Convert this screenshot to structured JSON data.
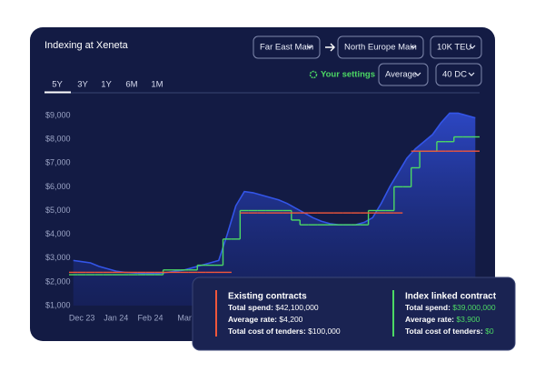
{
  "header": {
    "title": "Indexing at Xeneta",
    "origin": "Far East Main",
    "destination": "North Europe Main",
    "volume": "10K TEU",
    "settings": "Your settings",
    "metric": "Average",
    "equipment": "40 DC",
    "tabs": [
      "5Y",
      "3Y",
      "1Y",
      "6M",
      "1M"
    ]
  },
  "chart_data": {
    "type": "line",
    "categories": [
      null,
      "Dec 23",
      null,
      null,
      null,
      "Jan 24",
      null,
      null,
      null,
      "Feb 24",
      null,
      null,
      null,
      "Mar",
      null,
      null,
      null,
      null,
      null,
      null,
      null,
      null,
      null,
      null,
      null,
      null,
      null,
      null,
      null,
      null,
      null,
      null,
      null,
      null,
      null,
      null,
      null,
      null,
      null,
      null,
      null,
      null,
      null,
      null,
      null,
      null,
      null,
      null
    ],
    "series": [
      {
        "color": "#3355e8",
        "area": true,
        "step": false,
        "values": [
          2900,
          2850,
          2800,
          2650,
          2550,
          2450,
          2400,
          2380,
          2350,
          2350,
          2350,
          2400,
          2450,
          2500,
          2600,
          2700,
          2800,
          2900,
          4000,
          5200,
          5800,
          5750,
          5650,
          5550,
          5450,
          5300,
          5100,
          4900,
          4700,
          4550,
          4450,
          4400,
          4400,
          4400,
          4500,
          4700,
          5300,
          6000,
          6600,
          7200,
          7600,
          7900,
          8200,
          8700,
          9100,
          9100,
          9000,
          8900
        ]
      },
      {
        "color": "#4cd964",
        "area": false,
        "step": true,
        "values": [
          2300,
          2300,
          2300,
          2300,
          2300,
          2300,
          2300,
          2300,
          2300,
          2300,
          2300,
          2500,
          2500,
          2500,
          2500,
          2700,
          2700,
          2700,
          3800,
          3800,
          5000,
          5000,
          5000,
          5000,
          5000,
          5000,
          4600,
          4400,
          4400,
          4400,
          4400,
          4400,
          4400,
          4400,
          4400,
          5000,
          5000,
          5000,
          6000,
          6000,
          6800,
          7500,
          7500,
          7900,
          7900,
          8100,
          8100,
          8100
        ]
      },
      {
        "color": "#f0563b",
        "area": false,
        "step": true,
        "values": [
          2400,
          2400,
          2400,
          2400,
          2400,
          2400,
          2400,
          2400,
          2400,
          2400,
          2400,
          2400,
          2400,
          2400,
          2400,
          2400,
          2400,
          2400,
          2400,
          null,
          4900,
          4900,
          4900,
          4900,
          4900,
          4900,
          4900,
          4900,
          4900,
          4900,
          4900,
          4900,
          4900,
          4900,
          4900,
          4900,
          4900,
          4900,
          4900,
          null,
          7500,
          7500,
          7500,
          7500,
          7500,
          7500,
          7500,
          7500
        ]
      }
    ],
    "ylim": [
      1000,
      9000
    ],
    "yticks": [
      {
        "value": 1000,
        "label": "$1,000"
      },
      {
        "value": 2000,
        "label": "$2,000"
      },
      {
        "value": 3000,
        "label": "$3,000"
      },
      {
        "value": 4000,
        "label": "$4,000"
      },
      {
        "value": 5000,
        "label": "$5,000"
      },
      {
        "value": 6000,
        "label": "$6,000"
      },
      {
        "value": 7000,
        "label": "$7,000"
      },
      {
        "value": 8000,
        "label": "$8,000"
      },
      {
        "value": 9000,
        "label": "$9,000"
      }
    ],
    "grid": false
  },
  "panel": {
    "existing": {
      "title": "Existing contracts",
      "rows": [
        {
          "label": "Total spend:",
          "value": "$42,100,000"
        },
        {
          "label": "Average rate:",
          "value": "$4,200"
        },
        {
          "label": "Total cost of tenders:",
          "value": "$100,000"
        }
      ]
    },
    "indexed": {
      "title": "Index linked contract",
      "rows": [
        {
          "label": "Total spend:",
          "value": "$39,000,000"
        },
        {
          "label": "Average rate:",
          "value": "$3,900"
        },
        {
          "label": "Total cost of tenders:",
          "value": "$0"
        }
      ]
    }
  }
}
